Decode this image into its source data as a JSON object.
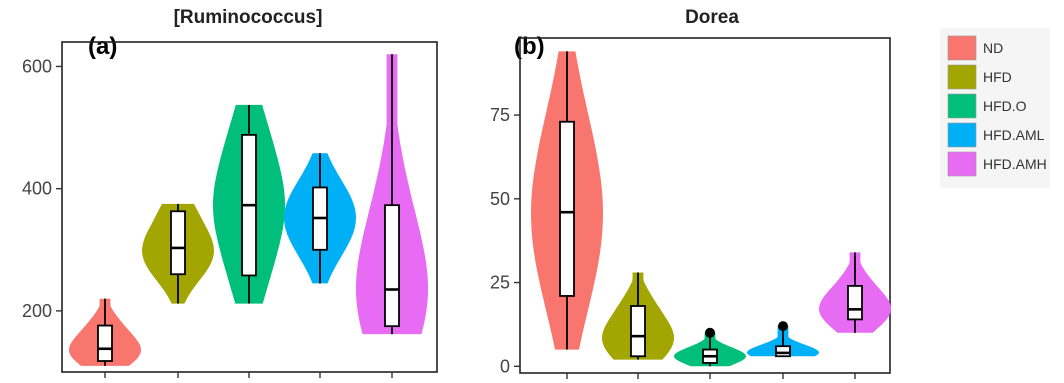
{
  "chart_data": [
    {
      "type": "violin",
      "panel_label": "(a)",
      "title": "[Ruminococcus]",
      "xlabel": "",
      "ylabel": "",
      "ylim": [
        100,
        640
      ],
      "yticks": [
        200,
        400,
        600
      ],
      "groups": [
        {
          "name": "ND",
          "min": 110,
          "q1": 118,
          "median": 138,
          "q3": 176,
          "max": 220
        },
        {
          "name": "HFD",
          "min": 212,
          "q1": 260,
          "median": 303,
          "q3": 363,
          "max": 375
        },
        {
          "name": "HFD.O",
          "min": 212,
          "q1": 258,
          "median": 373,
          "q3": 488,
          "max": 537
        },
        {
          "name": "HFD.AML",
          "min": 245,
          "q1": 300,
          "median": 352,
          "q3": 402,
          "max": 458
        },
        {
          "name": "HFD.AMH",
          "min": 162,
          "q1": 175,
          "median": 235,
          "q3": 373,
          "max": 620
        }
      ]
    },
    {
      "type": "violin",
      "panel_label": "(b)",
      "title": "Dorea",
      "xlabel": "",
      "ylabel": "",
      "ylim": [
        -2,
        98
      ],
      "yticks": [
        0,
        25,
        50,
        75
      ],
      "groups": [
        {
          "name": "ND",
          "min": 5,
          "q1": 21,
          "median": 46,
          "q3": 73,
          "max": 94,
          "outliers": []
        },
        {
          "name": "HFD",
          "min": 2,
          "q1": 3,
          "median": 9,
          "q3": 18,
          "max": 28,
          "outliers": []
        },
        {
          "name": "HFD.O",
          "min": 0,
          "q1": 1,
          "median": 3,
          "q3": 5,
          "max": 10,
          "outliers": [
            10
          ]
        },
        {
          "name": "HFD.AML",
          "min": 3,
          "q1": 3,
          "median": 4,
          "q3": 6,
          "max": 12,
          "outliers": [
            12
          ]
        },
        {
          "name": "HFD.AMH",
          "min": 10,
          "q1": 14,
          "median": 17,
          "q3": 24,
          "max": 34,
          "outliers": []
        }
      ]
    }
  ],
  "legend": {
    "placement": "right",
    "items": [
      {
        "label": "ND",
        "color": "#F8766D"
      },
      {
        "label": "HFD",
        "color": "#A3A500"
      },
      {
        "label": "HFD.O",
        "color": "#00BF7D"
      },
      {
        "label": "HFD.AML",
        "color": "#00B0F6"
      },
      {
        "label": "HFD.AMH",
        "color": "#E76BF3"
      }
    ]
  }
}
